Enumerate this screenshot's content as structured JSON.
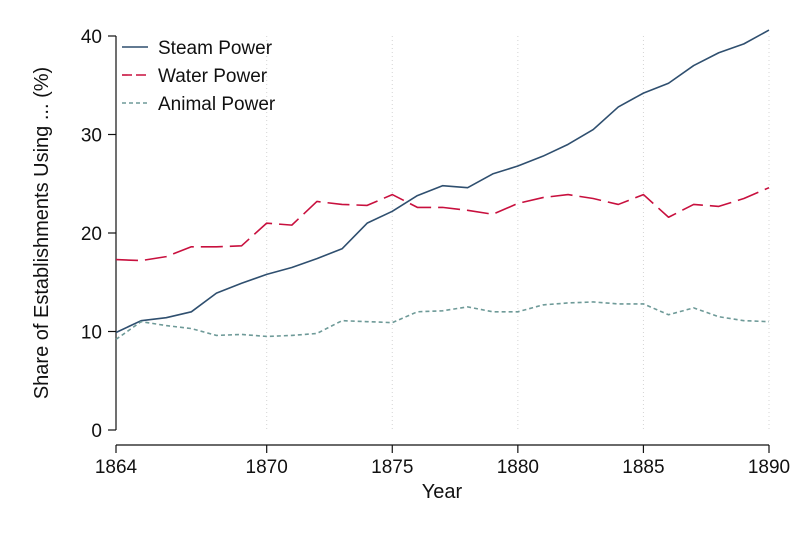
{
  "chart_data": {
    "type": "line",
    "title": "",
    "xlabel": "Year",
    "ylabel": "Share of Establishments Using ... (%)",
    "xlim": [
      1864,
      1890
    ],
    "ylim": [
      0,
      40
    ],
    "x_ticks": [
      1864,
      1870,
      1875,
      1880,
      1885,
      1890
    ],
    "y_ticks": [
      0,
      10,
      20,
      30,
      40
    ],
    "grid": "vertical dotted at x ticks",
    "legend_position": "top-left",
    "x": [
      1864,
      1865,
      1866,
      1867,
      1868,
      1869,
      1870,
      1871,
      1872,
      1873,
      1874,
      1875,
      1876,
      1877,
      1878,
      1879,
      1880,
      1881,
      1882,
      1883,
      1884,
      1885,
      1886,
      1887,
      1888,
      1889,
      1890
    ],
    "series": [
      {
        "name": "Steam Power",
        "color": "#2f4f6f",
        "dash": "solid",
        "values": [
          9.9,
          11.1,
          11.4,
          12.0,
          13.9,
          14.9,
          15.8,
          16.5,
          17.4,
          18.4,
          21.0,
          22.2,
          23.8,
          24.8,
          24.6,
          26.0,
          26.8,
          27.8,
          29.0,
          30.5,
          32.8,
          34.2,
          35.2,
          37.0,
          38.3,
          39.2,
          40.6
        ]
      },
      {
        "name": "Water Power",
        "color": "#c8103e",
        "dash": "long-dash",
        "values": [
          17.3,
          17.2,
          17.6,
          18.6,
          18.6,
          18.7,
          21.0,
          20.8,
          23.2,
          22.9,
          22.8,
          23.9,
          22.6,
          22.6,
          22.3,
          21.9,
          23.0,
          23.6,
          23.9,
          23.5,
          22.9,
          23.9,
          21.6,
          22.9,
          22.7,
          23.5,
          24.6
        ]
      },
      {
        "name": "Animal Power",
        "color": "#6e9a98",
        "dash": "short-dash",
        "values": [
          9.2,
          11.0,
          10.6,
          10.3,
          9.6,
          9.7,
          9.5,
          9.6,
          9.8,
          11.1,
          11.0,
          10.9,
          12.0,
          12.1,
          12.5,
          12.0,
          12.0,
          12.7,
          12.9,
          13.0,
          12.8,
          12.8,
          11.7,
          12.4,
          11.5,
          11.1,
          11.0
        ]
      }
    ]
  }
}
